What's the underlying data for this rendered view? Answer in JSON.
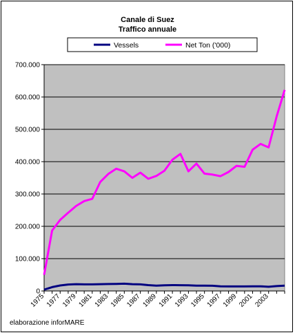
{
  "chart_data": {
    "type": "line",
    "title": "Canale di Suez",
    "subtitle": "Traffico annuale",
    "credit": "elaborazione inforMARE",
    "x": [
      1975,
      1976,
      1977,
      1978,
      1979,
      1980,
      1981,
      1982,
      1983,
      1984,
      1985,
      1986,
      1987,
      1988,
      1989,
      1990,
      1991,
      1992,
      1993,
      1994,
      1995,
      1996,
      1997,
      1998,
      1999,
      2000,
      2001,
      2002,
      2003,
      2004,
      2005
    ],
    "x_tick_labels": [
      "1975",
      "1977",
      "1979",
      "1981",
      "1983",
      "1985",
      "1987",
      "1989",
      "1991",
      "1993",
      "1995",
      "1997",
      "1999",
      "2001",
      "2003"
    ],
    "y_tick_labels": [
      "0",
      "100.000",
      "200.000",
      "300.000",
      "400.000",
      "500.000",
      "600.000",
      "700.000"
    ],
    "ylim": [
      0,
      700000
    ],
    "grid": true,
    "legend_position": "top",
    "plot_background": "#c0c0c0",
    "series": [
      {
        "name": "Vessels",
        "color": "#000080",
        "values": [
          4000,
          12000,
          17000,
          20000,
          21000,
          20500,
          20500,
          21000,
          21500,
          22000,
          22500,
          21000,
          20500,
          18000,
          16500,
          17500,
          18000,
          17800,
          17500,
          16500,
          16500,
          16200,
          14500,
          14000,
          14000,
          14000,
          14500,
          14500,
          13000,
          15000,
          16500
        ]
      },
      {
        "name": "Net Ton ('000)",
        "color": "#ff00ff",
        "values": [
          50000,
          187000,
          220000,
          242000,
          263000,
          278000,
          285000,
          337000,
          362000,
          378000,
          370000,
          350000,
          366000,
          347000,
          356000,
          372000,
          406000,
          424000,
          370000,
          394000,
          363000,
          360000,
          355000,
          368000,
          387000,
          384000,
          437000,
          455000,
          444000,
          540000,
          622000
        ]
      }
    ]
  }
}
